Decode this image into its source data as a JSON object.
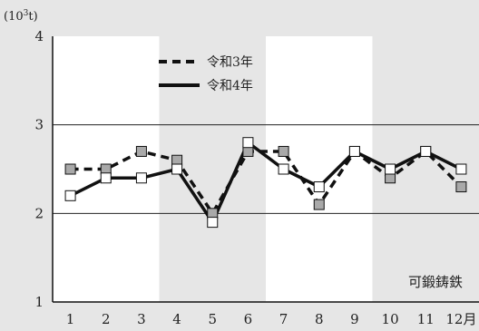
{
  "chart_data": {
    "type": "line",
    "unit_label_base": "(10",
    "unit_label_sup": "3",
    "unit_label_tail": "t)",
    "categories": [
      "1",
      "2",
      "3",
      "4",
      "5",
      "6",
      "7",
      "8",
      "9",
      "10",
      "11",
      "12月"
    ],
    "ylim": [
      1,
      4
    ],
    "yticks": [
      "1",
      "2",
      "3",
      "4"
    ],
    "series": [
      {
        "name": "令和3年",
        "style": "dashed",
        "marker": "gray-square",
        "values": [
          2.5,
          2.5,
          2.7,
          2.6,
          2.0,
          2.7,
          2.7,
          2.1,
          2.7,
          2.4,
          2.7,
          2.3
        ]
      },
      {
        "name": "令和4年",
        "style": "solid",
        "marker": "white-square",
        "values": [
          2.2,
          2.4,
          2.4,
          2.5,
          1.9,
          2.8,
          2.5,
          2.3,
          2.7,
          2.5,
          2.7,
          2.5
        ]
      }
    ],
    "annotation": "可鍛鋳鉄",
    "grid": "horizontal",
    "legend_position": "top-center"
  },
  "colors": {
    "page_bg": "#e6e6e6",
    "shade_band": "#e6e6e6",
    "line": "#111111",
    "gray_marker": "#a9a9a9",
    "white_marker": "#ffffff"
  }
}
